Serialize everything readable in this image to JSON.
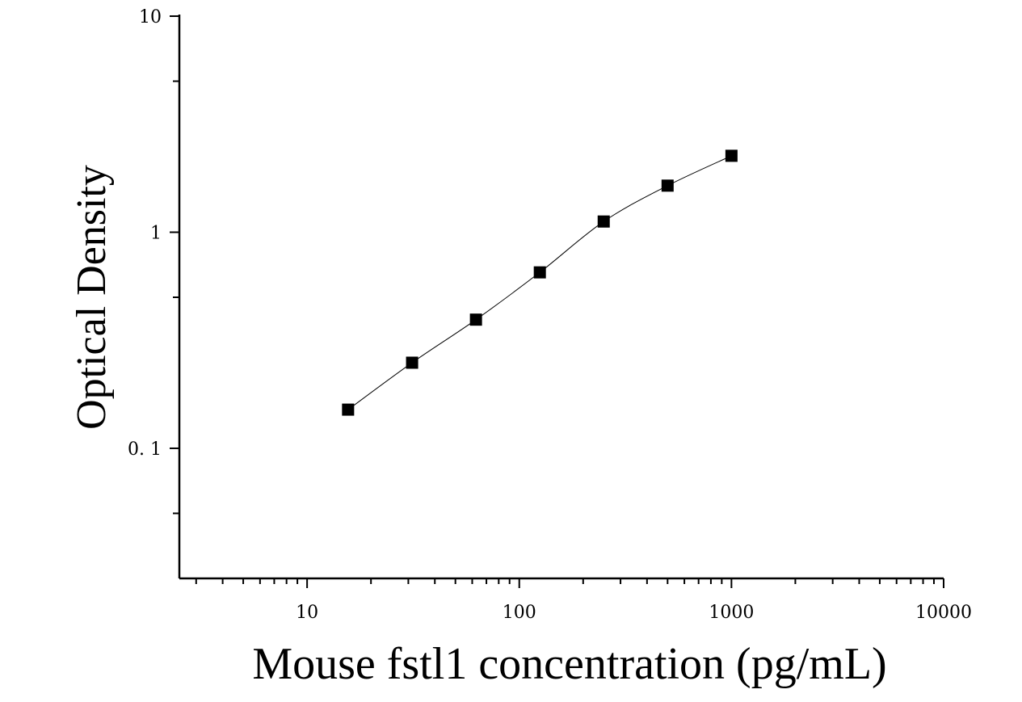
{
  "chart_data": {
    "type": "scatter",
    "xlabel": "Mouse fstl1 concentration (pg/mL)",
    "ylabel": "Optical Density",
    "x_scale": "log",
    "y_scale": "log",
    "xlim": [
      2.5,
      10000
    ],
    "ylim": [
      0.025,
      10
    ],
    "x_ticks": [
      10,
      100,
      1000,
      10000
    ],
    "x_tick_labels": [
      "10",
      "100",
      "1000",
      "10000"
    ],
    "y_ticks": [
      0.1,
      1,
      10
    ],
    "y_tick_labels": [
      "0. 1",
      "1",
      "10"
    ],
    "grid": false,
    "legend": "none",
    "series": [
      {
        "marker": "square",
        "x": [
          15.6,
          31.25,
          62.5,
          125,
          250,
          500,
          1000
        ],
        "y": [
          0.151,
          0.249,
          0.394,
          0.652,
          1.121,
          1.643,
          2.258
        ]
      }
    ],
    "fit_curve": true,
    "colors": {
      "marker": "#000000",
      "line": "#000000",
      "axis": "#000000"
    }
  }
}
